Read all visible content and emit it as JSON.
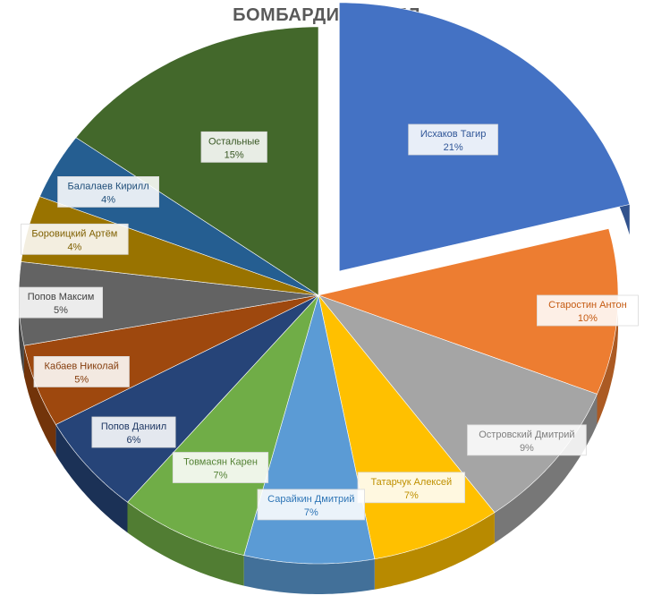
{
  "chart_data": {
    "type": "pie",
    "title": "БОМБАРДИРЫ В ПЛ",
    "categories": [
      "Исхаков Тагир",
      "Старостин Антон",
      "Островский Дмитрий",
      "Татарчук Алексей",
      "Сарайкин Дмитрий",
      "Товмасян Карен",
      "Попов Даниил",
      "Кабаев Николай",
      "Попов Максим",
      "Боровицкий Артём",
      "Балалаев Кирилл",
      "Остальные"
    ],
    "values": [
      21,
      10,
      9,
      7,
      7,
      7,
      6,
      5,
      5,
      4,
      4,
      15
    ],
    "percent_labels": [
      "21%",
      "10%",
      "9%",
      "7%",
      "7%",
      "7%",
      "6%",
      "5%",
      "5%",
      "4%",
      "4%",
      "15%"
    ],
    "colors": [
      "#4472C4",
      "#ED7D31",
      "#A5A5A5",
      "#FFC000",
      "#5B9BD5",
      "#70AD47",
      "#264478",
      "#9E480E",
      "#636363",
      "#997300",
      "#255E91",
      "#43682B"
    ],
    "label_colors": [
      "#2F5597",
      "#C55A11",
      "#7F7F7F",
      "#BF9000",
      "#2E75B6",
      "#548235",
      "#1F3864",
      "#843C0C",
      "#404040",
      "#7F6000",
      "#1F4E79",
      "#385723"
    ],
    "exploded_slice": "Исхаков Тагир",
    "legend": "none",
    "style": "3d-exploded"
  }
}
